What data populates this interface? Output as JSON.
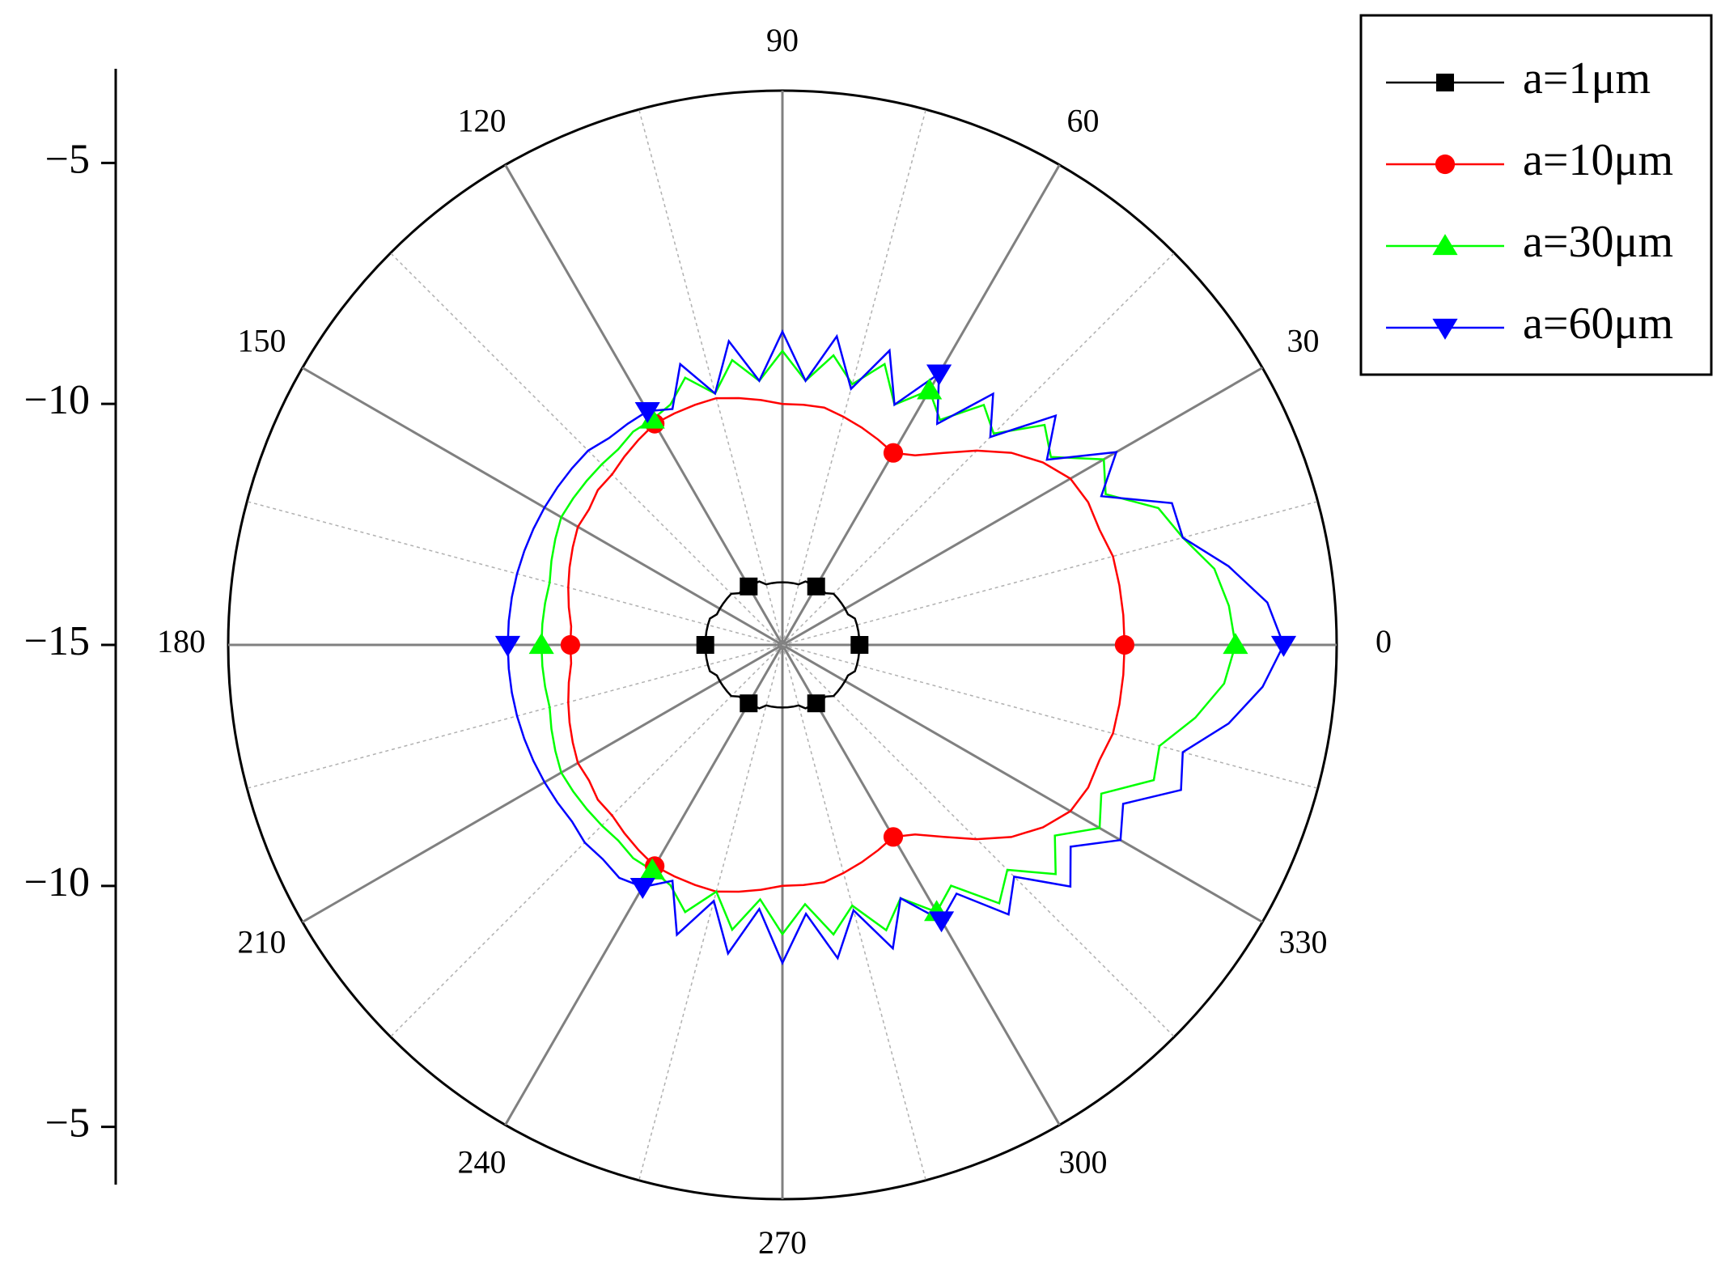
{
  "chart_data": {
    "type": "polar",
    "rlim": [
      -15,
      -3.5
    ],
    "rticks": [
      {
        "value": -15,
        "label": "−15"
      },
      {
        "value": -10,
        "label": "−10"
      },
      {
        "value": -5,
        "label": "−5"
      }
    ],
    "angle_ticks": [
      0,
      30,
      60,
      90,
      120,
      150,
      180,
      210,
      240,
      270,
      300,
      330
    ],
    "legend": "upper right",
    "theta": [
      0,
      5,
      10,
      15,
      20,
      25,
      30,
      35,
      40,
      45,
      50,
      55,
      60,
      65,
      70,
      75,
      80,
      85,
      90,
      95,
      100,
      105,
      110,
      115,
      120,
      125,
      130,
      135,
      140,
      145,
      150,
      155,
      160,
      165,
      170,
      175,
      180,
      185,
      190,
      195,
      200,
      205,
      210,
      215,
      220,
      225,
      230,
      235,
      240,
      245,
      250,
      255,
      260,
      265,
      270,
      275,
      280,
      285,
      290,
      295,
      300,
      305,
      310,
      315,
      320,
      325,
      330,
      335,
      340,
      345,
      350,
      355
    ],
    "series": [
      {
        "name": "a=1μm",
        "color": "#000000",
        "marker": "square",
        "values": [
          -13.4,
          -13.4,
          -13.4,
          -13.4,
          -13.4,
          -13.5,
          -13.5,
          -13.5,
          -13.5,
          -13.5,
          -13.6,
          -13.6,
          -13.6,
          -13.6,
          -13.6,
          -13.7,
          -13.7,
          -13.7,
          -13.7,
          -13.7,
          -13.7,
          -13.7,
          -13.6,
          -13.6,
          -13.6,
          -13.6,
          -13.6,
          -13.5,
          -13.5,
          -13.5,
          -13.5,
          -13.5,
          -13.4,
          -13.4,
          -13.4,
          -13.4,
          -13.4,
          -13.4,
          -13.4,
          -13.4,
          -13.4,
          -13.5,
          -13.5,
          -13.5,
          -13.5,
          -13.5,
          -13.6,
          -13.6,
          -13.6,
          -13.6,
          -13.6,
          -13.7,
          -13.7,
          -13.7,
          -13.7,
          -13.7,
          -13.7,
          -13.7,
          -13.6,
          -13.6,
          -13.6,
          -13.6,
          -13.6,
          -13.5,
          -13.5,
          -13.5,
          -13.5,
          -13.5,
          -13.4,
          -13.4,
          -13.4,
          -13.4
        ]
      },
      {
        "name": "a=10μm",
        "color": "#ff0000",
        "marker": "circle",
        "values": [
          -7.9,
          -7.9,
          -7.9,
          -7.9,
          -8.0,
          -8.0,
          -8.1,
          -8.4,
          -8.8,
          -9.3,
          -9.8,
          -10.2,
          -10.4,
          -10.3,
          -10.2,
          -10.1,
          -10.0,
          -10.0,
          -10.0,
          -9.9,
          -9.8,
          -9.7,
          -9.7,
          -9.7,
          -9.7,
          -9.8,
          -9.9,
          -10.0,
          -10.0,
          -10.1,
          -10.1,
          -10.2,
          -10.3,
          -10.4,
          -10.5,
          -10.6,
          -10.6,
          -10.6,
          -10.5,
          -10.4,
          -10.3,
          -10.2,
          -10.1,
          -10.1,
          -10.0,
          -10.0,
          -9.9,
          -9.8,
          -9.7,
          -9.7,
          -9.7,
          -9.7,
          -9.8,
          -9.9,
          -10.0,
          -10.0,
          -10.0,
          -10.1,
          -10.2,
          -10.3,
          -10.4,
          -10.2,
          -9.8,
          -9.3,
          -8.8,
          -8.4,
          -8.1,
          -8.0,
          -8.0,
          -7.9,
          -7.9,
          -7.9
        ]
      },
      {
        "name": "a=30μm",
        "color": "#00ff00",
        "marker": "triangle-up",
        "values": [
          -5.6,
          -5.7,
          -5.9,
          -6.4,
          -6.7,
          -7.6,
          -7.3,
          -8.2,
          -7.9,
          -8.8,
          -8.5,
          -9.3,
          -8.9,
          -9.5,
          -8.8,
          -9.4,
          -8.9,
          -9.5,
          -8.9,
          -9.5,
          -9.0,
          -9.6,
          -9.1,
          -9.5,
          -9.6,
          -9.6,
          -9.7,
          -9.7,
          -9.7,
          -9.7,
          -9.7,
          -9.8,
          -9.9,
          -10.0,
          -10.0,
          -10.0,
          -10.0,
          -10.0,
          -10.0,
          -10.0,
          -9.9,
          -9.8,
          -9.7,
          -9.7,
          -9.7,
          -9.7,
          -9.7,
          -9.6,
          -9.6,
          -9.5,
          -9.1,
          -9.7,
          -9.0,
          -9.7,
          -9.0,
          -9.6,
          -8.9,
          -9.4,
          -8.7,
          -9.2,
          -8.6,
          -8.9,
          -8.0,
          -8.4,
          -7.6,
          -8.1,
          -7.4,
          -7.7,
          -6.8,
          -6.9,
          -6.3,
          -5.8
        ]
      },
      {
        "name": "a=60μm",
        "color": "#0000ff",
        "marker": "triangle-down",
        "values": [
          -4.6,
          -4.9,
          -5.6,
          -6.4,
          -6.4,
          -7.7,
          -7.0,
          -8.3,
          -7.6,
          -8.9,
          -8.2,
          -9.4,
          -8.5,
          -9.5,
          -8.5,
          -9.5,
          -8.5,
          -9.5,
          -8.5,
          -9.5,
          -8.6,
          -9.6,
          -8.8,
          -9.6,
          -9.4,
          -9.4,
          -9.4,
          -9.3,
          -9.3,
          -9.3,
          -9.3,
          -9.3,
          -9.3,
          -9.3,
          -9.3,
          -9.3,
          -9.3,
          -9.3,
          -9.3,
          -9.3,
          -9.3,
          -9.3,
          -9.3,
          -9.3,
          -9.3,
          -9.2,
          -9.2,
          -9.1,
          -9.2,
          -9.6,
          -8.6,
          -9.5,
          -8.5,
          -9.5,
          -8.4,
          -9.4,
          -8.4,
          -9.3,
          -8.3,
          -9.2,
          -8.4,
          -8.7,
          -7.7,
          -8.2,
          -7.2,
          -7.7,
          -6.9,
          -7.2,
          -6.2,
          -6.4,
          -5.6,
          -5.0
        ]
      }
    ]
  }
}
